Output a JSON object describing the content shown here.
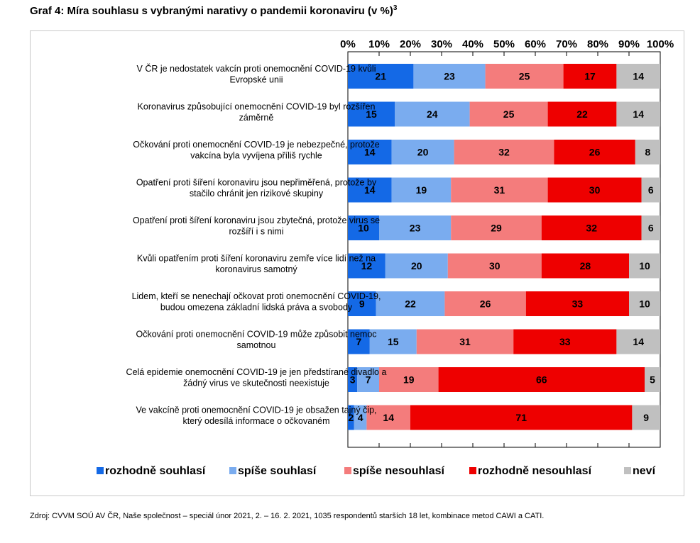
{
  "title": "Graf 4: Míra souhlasu s vybranými narativy o pandemii koronaviru (v %)",
  "title_note": "3",
  "source": "Zdroj: CVVM SOÚ AV ČR, Naše společnost – speciál únor 2021, 2. – 16. 2. 2021, 1035 respondentů starších 18 let, kombinace metod CAWI a CATI.",
  "chart_data": {
    "type": "bar",
    "orientation": "horizontal",
    "stacked": true,
    "xlim": [
      0,
      100
    ],
    "x_ticks": [
      "0%",
      "10%",
      "20%",
      "30%",
      "40%",
      "50%",
      "60%",
      "70%",
      "80%",
      "90%",
      "100%"
    ],
    "legend_position": "bottom",
    "categories": [
      [
        "V ČR je nedostatek vakcín proti onemocnění COVID-19 kvůli",
        "Evropské unii"
      ],
      [
        "Koronavirus způsobující onemocnění COVID-19 byl rozšířen",
        "záměrně"
      ],
      [
        "Očkování proti onemocnění COVID-19 je nebezpečné, protože",
        "vakcína byla vyvíjena příliš rychle"
      ],
      [
        "Opatření proti šíření koronaviru jsou nepřiměřená, protože by",
        "stačilo chránit jen rizikové skupiny"
      ],
      [
        "Opatření proti šíření koronaviru jsou zbytečná, protože virus se",
        "rozšíří i s nimi"
      ],
      [
        "Kvůli opatřením proti šíření koronaviru zemře více lidí než na",
        "koronavirus samotný"
      ],
      [
        "Lidem, kteří se nenechají očkovat proti onemocnění COVID-19,",
        "budou omezena základní lidská práva a svobody"
      ],
      [
        "Očkování proti onemocnění COVID-19 může způsobit nemoc",
        "samotnou"
      ],
      [
        "Celá epidemie onemocnění COVID-19 je jen předstírané divadlo a",
        "žádný virus ve skutečnosti neexistuje"
      ],
      [
        "Ve vakcíně proti onemocnění COVID-19 je obsažen tajný čip,",
        "který odesílá informace o očkovaném"
      ]
    ],
    "series": [
      {
        "name": "rozhodně souhlasí",
        "color": "#1469e6",
        "values": [
          21,
          15,
          14,
          14,
          10,
          12,
          9,
          7,
          3,
          2
        ]
      },
      {
        "name": "spíše souhlasí",
        "color": "#7aacef",
        "values": [
          23,
          24,
          20,
          19,
          23,
          20,
          22,
          15,
          7,
          4
        ]
      },
      {
        "name": "spíše nesouhlasí",
        "color": "#f47c7c",
        "values": [
          25,
          25,
          32,
          31,
          29,
          30,
          26,
          31,
          19,
          14
        ]
      },
      {
        "name": "rozhodně nesouhlasí",
        "color": "#ee0000",
        "values": [
          17,
          22,
          26,
          30,
          32,
          28,
          33,
          33,
          66,
          71
        ]
      },
      {
        "name": "neví",
        "color": "#c0c0c0",
        "values": [
          14,
          14,
          8,
          6,
          6,
          10,
          10,
          14,
          5,
          9
        ]
      }
    ]
  }
}
